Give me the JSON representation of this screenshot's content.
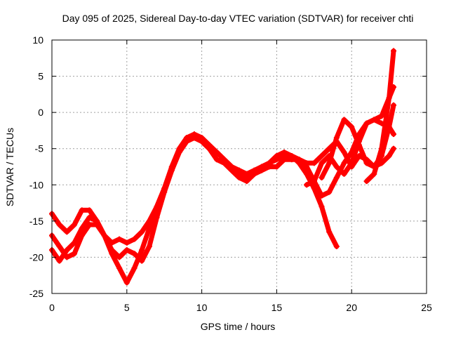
{
  "chart_data": {
    "type": "scatter",
    "title": "Day 095 of 2025, Sidereal Day-to-day VTEC variation (SDTVAR) for receiver chti",
    "xlabel": "GPS time / hours",
    "ylabel": "SDTVAR / TECUs",
    "xlim": [
      0,
      25
    ],
    "ylim": [
      -25,
      10
    ],
    "xticks": [
      0,
      5,
      10,
      15,
      20,
      25
    ],
    "yticks": [
      -25,
      -20,
      -15,
      -10,
      -5,
      0,
      5,
      10
    ],
    "grid": true,
    "marker": "plus",
    "color": "#ff0000",
    "series": [
      {
        "x": [
          0.0,
          0.5,
          1.0,
          1.5,
          2.0,
          2.5,
          3.0,
          3.5,
          4.0,
          4.5,
          5.0,
          5.5,
          6.0,
          6.5,
          7.0,
          7.5,
          8.0,
          8.5,
          9.0,
          9.5,
          10.0,
          10.5,
          11.0,
          11.5,
          12.0,
          12.5,
          13.0,
          13.5,
          14.0,
          14.5,
          15.0,
          15.5,
          16.0,
          16.5,
          17.0,
          17.5,
          18.0,
          18.5,
          19.0
        ],
        "y": [
          -14.0,
          -15.5,
          -16.5,
          -15.5,
          -13.5,
          -13.5,
          -15.0,
          -17.0,
          -18.0,
          -17.5,
          -18.0,
          -17.5,
          -16.5,
          -15.0,
          -13.0,
          -10.5,
          -7.5,
          -5.0,
          -3.5,
          -3.5,
          -4.0,
          -5.0,
          -5.5,
          -6.5,
          -7.5,
          -8.0,
          -8.5,
          -8.0,
          -7.5,
          -7.0,
          -6.0,
          -5.5,
          -6.0,
          -7.0,
          -8.5,
          -10.5,
          -13.0,
          -16.5,
          -18.5
        ]
      },
      {
        "x": [
          0.0,
          0.5,
          1.0,
          1.5,
          2.0,
          2.5,
          3.0,
          3.5,
          4.0,
          4.5,
          5.0,
          5.5,
          6.0,
          6.5,
          7.0,
          7.5,
          8.0,
          8.5,
          9.0,
          9.5,
          10.0,
          10.5,
          11.0,
          11.5,
          12.0,
          12.5,
          13.0,
          13.5,
          14.0,
          14.5,
          15.0,
          15.5,
          16.0,
          16.5,
          17.0,
          17.5,
          18.0,
          18.5,
          19.0,
          19.5,
          20.0,
          20.5,
          21.0,
          21.5,
          22.0,
          22.5,
          22.8
        ],
        "y": [
          -17.0,
          -18.5,
          -20.0,
          -19.5,
          -17.0,
          -15.5,
          -15.5,
          -17.0,
          -19.0,
          -20.0,
          -19.0,
          -19.5,
          -20.5,
          -18.5,
          -14.5,
          -11.0,
          -8.0,
          -5.5,
          -4.0,
          -3.5,
          -4.0,
          -5.0,
          -6.5,
          -7.0,
          -8.0,
          -9.0,
          -9.5,
          -8.5,
          -8.0,
          -7.5,
          -7.5,
          -6.5,
          -6.5,
          -6.5,
          -7.0,
          -7.0,
          -6.0,
          -5.0,
          -4.0,
          -5.5,
          -7.5,
          -6.0,
          -6.5,
          -7.5,
          -7.0,
          -6.0,
          -5.0
        ]
      },
      {
        "x": [
          0.0,
          0.5,
          1.0,
          1.5,
          2.0,
          2.5,
          3.0,
          3.5,
          4.0,
          4.5,
          5.0,
          5.5,
          6.0,
          6.5,
          7.0,
          7.5,
          8.0,
          8.5,
          9.0,
          9.5,
          10.0,
          10.5,
          11.0,
          11.5,
          12.0,
          12.5,
          13.0,
          13.5,
          14.0,
          14.5,
          15.0,
          15.5,
          16.0,
          16.5,
          17.0,
          17.5,
          18.0,
          18.5,
          19.0,
          19.5,
          20.0,
          20.5,
          21.0,
          21.5,
          22.0,
          22.5,
          22.8
        ],
        "y": [
          -19.0,
          -20.5,
          -19.0,
          -18.0,
          -16.0,
          -14.5,
          -15.0,
          -17.0,
          -19.5,
          -21.5,
          -23.5,
          -21.5,
          -19.0,
          -16.0,
          -13.0,
          -10.5,
          -7.5,
          -5.0,
          -3.5,
          -3.0,
          -3.5,
          -4.5,
          -5.5,
          -6.5,
          -7.5,
          -8.5,
          -9.0,
          -8.5,
          -7.5,
          -7.0,
          -6.5,
          -6.0,
          -6.0,
          -6.5,
          -7.5,
          -9.5,
          -11.5,
          -11.0,
          -9.0,
          -7.0,
          -5.5,
          -3.0,
          -1.5,
          -1.0,
          -1.5,
          -2.0,
          -3.0
        ]
      },
      {
        "x": [
          17.0,
          17.5,
          18.0,
          18.5,
          19.0,
          19.5,
          20.0,
          20.5,
          21.0,
          21.5,
          22.0,
          22.5,
          22.8
        ],
        "y": [
          -10.0,
          -9.5,
          -7.0,
          -6.0,
          -7.5,
          -8.5,
          -7.0,
          -4.0,
          -1.5,
          -1.0,
          -0.5,
          2.0,
          3.5
        ]
      },
      {
        "x": [
          18.0,
          18.5,
          19.0,
          19.5,
          20.0,
          20.5,
          21.0,
          21.5,
          22.0,
          22.5,
          22.8
        ],
        "y": [
          -9.0,
          -7.0,
          -3.5,
          -1.0,
          -2.0,
          -4.5,
          -7.0,
          -7.5,
          -6.0,
          -2.0,
          1.0
        ]
      },
      {
        "x": [
          21.0,
          21.5,
          22.0,
          22.5,
          22.8
        ],
        "y": [
          -9.5,
          -8.5,
          -5.0,
          2.0,
          8.5
        ]
      }
    ]
  }
}
